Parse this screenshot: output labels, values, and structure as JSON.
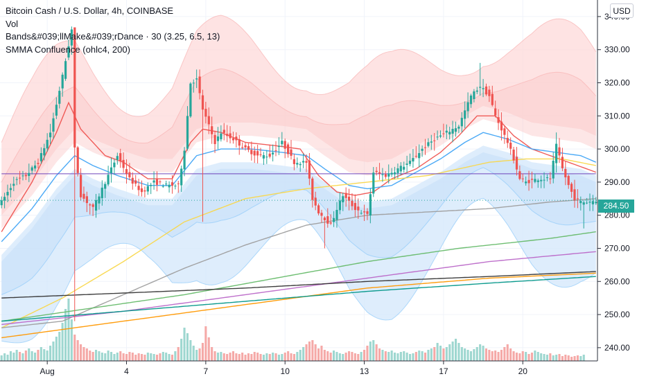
{
  "legend": {
    "symbol": "Bitcoin Cash / U.S. Dollar, 4h, COINBASE",
    "vol": "Vol",
    "bands": "Bands&#039;llMake&#039;rDance · 30 (3.25, 6.5, 13)",
    "smma": "SMMA Confluence (ohlc4, 200)"
  },
  "currency_button": "USD",
  "last_price": "284.50",
  "colors": {
    "up": "#26a69a",
    "down": "#ef5350",
    "band_outer": "#fdd9d9",
    "band_inner": "#d6e9fb"
  },
  "chart_data": {
    "type": "candlestick",
    "y_ticks": [
      "340.00",
      "330.00",
      "320.00",
      "310.00",
      "300.00",
      "290.00",
      "280.00",
      "270.00",
      "260.00",
      "250.00",
      "240.00"
    ],
    "y_tick_values": [
      340,
      330,
      320,
      310,
      300,
      290,
      280,
      270,
      260,
      250,
      240
    ],
    "ylim": [
      236,
      345
    ],
    "x_ticks": [
      "Aug",
      "4",
      "7",
      "10",
      "13",
      "17",
      "20"
    ],
    "x_tick_index": [
      15,
      41,
      67,
      93,
      119,
      145,
      171
    ],
    "candle_count": 196,
    "close_keypoints": [
      [
        0,
        284
      ],
      [
        4,
        290
      ],
      [
        8,
        292
      ],
      [
        12,
        296
      ],
      [
        16,
        305
      ],
      [
        20,
        322
      ],
      [
        23,
        336
      ],
      [
        24,
        300
      ],
      [
        26,
        286
      ],
      [
        30,
        282
      ],
      [
        34,
        290
      ],
      [
        38,
        298
      ],
      [
        42,
        291
      ],
      [
        46,
        287
      ],
      [
        50,
        290
      ],
      [
        54,
        289
      ],
      [
        58,
        289
      ],
      [
        60,
        300
      ],
      [
        62,
        320
      ],
      [
        64,
        321
      ],
      [
        66,
        312
      ],
      [
        68,
        307
      ],
      [
        70,
        302
      ],
      [
        72,
        305
      ],
      [
        76,
        303
      ],
      [
        80,
        300
      ],
      [
        84,
        298
      ],
      [
        88,
        298
      ],
      [
        92,
        302
      ],
      [
        96,
        296
      ],
      [
        100,
        296
      ],
      [
        102,
        285
      ],
      [
        104,
        281
      ],
      [
        106,
        279
      ],
      [
        108,
        277
      ],
      [
        110,
        282
      ],
      [
        112,
        286
      ],
      [
        116,
        282
      ],
      [
        120,
        280
      ],
      [
        122,
        293
      ],
      [
        126,
        292
      ],
      [
        130,
        294
      ],
      [
        134,
        296
      ],
      [
        138,
        300
      ],
      [
        142,
        303
      ],
      [
        146,
        305
      ],
      [
        150,
        307
      ],
      [
        154,
        316
      ],
      [
        157,
        319
      ],
      [
        160,
        316
      ],
      [
        162,
        310
      ],
      [
        164,
        306
      ],
      [
        166,
        302
      ],
      [
        168,
        297
      ],
      [
        170,
        291
      ],
      [
        172,
        290
      ],
      [
        176,
        291
      ],
      [
        180,
        291
      ],
      [
        182,
        301
      ],
      [
        184,
        294
      ],
      [
        186,
        289
      ],
      [
        188,
        285
      ],
      [
        190,
        284
      ],
      [
        192,
        284
      ],
      [
        195,
        284.5
      ]
    ],
    "volume_ylim": [
      0,
      10
    ],
    "volume": [
      0.8,
      1.1,
      0.9,
      1.4,
      1.2,
      1.6,
      1.3,
      1.1,
      1.5,
      1.8,
      1.4,
      1.2,
      1.6,
      2.0,
      1.7,
      1.5,
      2.2,
      2.8,
      3.5,
      4.2,
      5.5,
      7.5,
      9.0,
      6.0,
      3.8,
      3.0,
      2.4,
      2.0,
      1.8,
      1.5,
      1.3,
      1.6,
      1.4,
      1.2,
      1.1,
      1.5,
      1.3,
      1.0,
      1.2,
      1.4,
      1.1,
      1.0,
      1.3,
      1.2,
      0.9,
      1.1,
      1.0,
      0.9,
      1.2,
      1.1,
      1.0,
      0.9,
      1.1,
      1.3,
      1.2,
      1.0,
      0.9,
      1.4,
      2.0,
      3.2,
      4.8,
      4.0,
      3.0,
      2.2,
      1.6,
      1.8,
      2.6,
      5.0,
      3.4,
      2.0,
      1.4,
      1.2,
      1.3,
      1.1,
      1.0,
      1.2,
      1.4,
      1.1,
      1.0,
      1.2,
      0.9,
      1.1,
      1.0,
      1.3,
      1.2,
      1.0,
      0.9,
      1.1,
      1.0,
      1.2,
      1.1,
      0.9,
      1.0,
      1.2,
      1.4,
      1.1,
      1.0,
      1.3,
      1.6,
      2.0,
      2.4,
      2.8,
      3.0,
      2.4,
      1.8,
      2.2,
      1.6,
      1.4,
      1.2,
      1.5,
      1.3,
      1.1,
      1.0,
      1.2,
      1.4,
      1.3,
      1.1,
      1.0,
      1.3,
      1.6,
      2.2,
      2.8,
      3.0,
      2.4,
      1.8,
      1.6,
      1.4,
      1.3,
      1.5,
      1.2,
      1.1,
      1.3,
      1.4,
      1.2,
      1.0,
      1.1,
      1.3,
      1.5,
      1.4,
      1.2,
      1.6,
      1.8,
      2.0,
      2.6,
      2.2,
      1.8,
      2.0,
      2.4,
      2.8,
      3.2,
      2.6,
      2.0,
      1.8,
      1.6,
      1.4,
      1.7,
      2.0,
      2.4,
      2.2,
      1.8,
      1.6,
      1.4,
      1.5,
      1.3,
      1.6,
      2.0,
      2.4,
      1.8,
      1.4,
      1.2,
      1.1,
      1.4,
      1.3,
      1.0,
      1.2,
      1.5,
      1.3,
      1.1,
      1.0,
      0.9,
      1.1,
      0.8,
      0.9,
      1.0,
      0.7,
      0.9,
      0.8,
      0.6,
      0.7,
      0.8,
      0.7,
      0.9
    ],
    "moving_averages": [
      {
        "color": "#ef5350",
        "points": [
          [
            0,
            275
          ],
          [
            10,
            290
          ],
          [
            18,
            305
          ],
          [
            22,
            314
          ],
          [
            26,
            306
          ],
          [
            30,
            302
          ],
          [
            34,
            298
          ],
          [
            40,
            296
          ],
          [
            48,
            291
          ],
          [
            56,
            291
          ],
          [
            62,
            302
          ],
          [
            66,
            306
          ],
          [
            72,
            305
          ],
          [
            80,
            302
          ],
          [
            90,
            301
          ],
          [
            98,
            300
          ],
          [
            104,
            292
          ],
          [
            110,
            287
          ],
          [
            116,
            286
          ],
          [
            122,
            287
          ],
          [
            128,
            291
          ],
          [
            136,
            294
          ],
          [
            144,
            299
          ],
          [
            150,
            304
          ],
          [
            156,
            310
          ],
          [
            162,
            310
          ],
          [
            168,
            304
          ],
          [
            174,
            300
          ],
          [
            180,
            298
          ],
          [
            186,
            296
          ],
          [
            195,
            293
          ]
        ]
      },
      {
        "color": "#42a5f5",
        "points": [
          [
            0,
            272
          ],
          [
            10,
            282
          ],
          [
            18,
            292
          ],
          [
            24,
            298
          ],
          [
            30,
            295
          ],
          [
            38,
            292
          ],
          [
            48,
            289
          ],
          [
            56,
            289
          ],
          [
            64,
            298
          ],
          [
            72,
            300
          ],
          [
            82,
            300
          ],
          [
            92,
            299
          ],
          [
            100,
            298
          ],
          [
            106,
            294
          ],
          [
            114,
            289
          ],
          [
            120,
            288
          ],
          [
            128,
            289
          ],
          [
            136,
            293
          ],
          [
            144,
            297
          ],
          [
            152,
            302
          ],
          [
            158,
            305
          ],
          [
            166,
            303
          ],
          [
            174,
            300
          ],
          [
            182,
            299
          ],
          [
            190,
            298
          ],
          [
            195,
            296
          ]
        ]
      },
      {
        "color": "#f9d74a",
        "points": [
          [
            0,
            246
          ],
          [
            20,
            255
          ],
          [
            40,
            266
          ],
          [
            60,
            278
          ],
          [
            80,
            285
          ],
          [
            100,
            288
          ],
          [
            120,
            290
          ],
          [
            140,
            292
          ],
          [
            160,
            296
          ],
          [
            172,
            297
          ],
          [
            184,
            297
          ],
          [
            195,
            295
          ]
        ]
      },
      {
        "color": "#9e9e9e",
        "points": [
          [
            0,
            246
          ],
          [
            20,
            248
          ],
          [
            40,
            256
          ],
          [
            60,
            264
          ],
          [
            80,
            271
          ],
          [
            100,
            277
          ],
          [
            120,
            280
          ],
          [
            140,
            281
          ],
          [
            160,
            282
          ],
          [
            180,
            284
          ],
          [
            195,
            285
          ]
        ]
      },
      {
        "color": "#66bb6a",
        "points": [
          [
            0,
            248
          ],
          [
            30,
            252
          ],
          [
            60,
            256
          ],
          [
            90,
            261
          ],
          [
            120,
            266
          ],
          [
            150,
            270
          ],
          [
            180,
            273
          ],
          [
            195,
            275
          ]
        ]
      },
      {
        "color": "#ba68c8",
        "points": [
          [
            0,
            247
          ],
          [
            40,
            251
          ],
          [
            80,
            256
          ],
          [
            120,
            261
          ],
          [
            160,
            266
          ],
          [
            195,
            269
          ]
        ]
      },
      {
        "color": "#ff9800",
        "points": [
          [
            0,
            243
          ],
          [
            40,
            248
          ],
          [
            80,
            253
          ],
          [
            120,
            258
          ],
          [
            160,
            261
          ],
          [
            195,
            262.5
          ]
        ]
      },
      {
        "color": "#333333",
        "points": [
          [
            0,
            255
          ],
          [
            40,
            256.5
          ],
          [
            80,
            258
          ],
          [
            120,
            260
          ],
          [
            160,
            261.5
          ],
          [
            195,
            263
          ]
        ]
      },
      {
        "color": "#009688",
        "points": [
          [
            0,
            248
          ],
          [
            40,
            251
          ],
          [
            80,
            254
          ],
          [
            120,
            257
          ],
          [
            160,
            259.5
          ],
          [
            195,
            261.5
          ]
        ]
      },
      {
        "color": "#673ab7",
        "points": [
          [
            0,
            292.5
          ],
          [
            195,
            292.5
          ]
        ]
      }
    ]
  }
}
